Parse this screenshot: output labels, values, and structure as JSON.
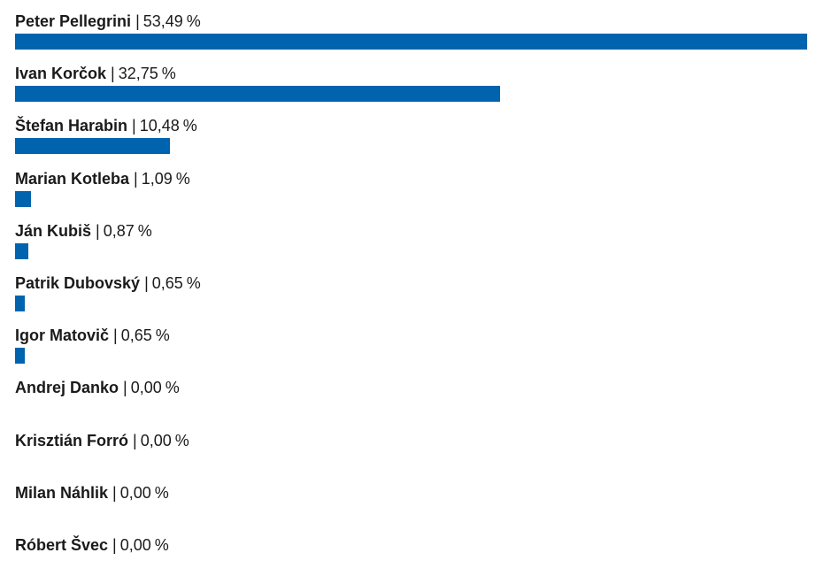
{
  "chart_data": {
    "type": "bar",
    "orientation": "horizontal",
    "unit": "%",
    "separator": "|",
    "bar_color": "#0063ae",
    "categories": [
      "Peter Pellegrini",
      "Ivan Korčok",
      "Štefan Harabin",
      "Marian Kotleba",
      "Ján Kubiš",
      "Patrik Dubovský",
      "Igor Matovič",
      "Andrej Danko",
      "Krisztián Forró",
      "Milan Náhlik",
      "Róbert Švec"
    ],
    "values": [
      53.49,
      32.75,
      10.48,
      1.09,
      0.87,
      0.65,
      0.65,
      0.0,
      0.0,
      0.0,
      0.0
    ],
    "value_labels": [
      "53,49",
      "32,75",
      "10,48",
      "1,09",
      "0,87",
      "0,65",
      "0,65",
      "0,00",
      "0,00",
      "0,00",
      "0,00"
    ],
    "xlim": [
      0,
      53.49
    ]
  }
}
